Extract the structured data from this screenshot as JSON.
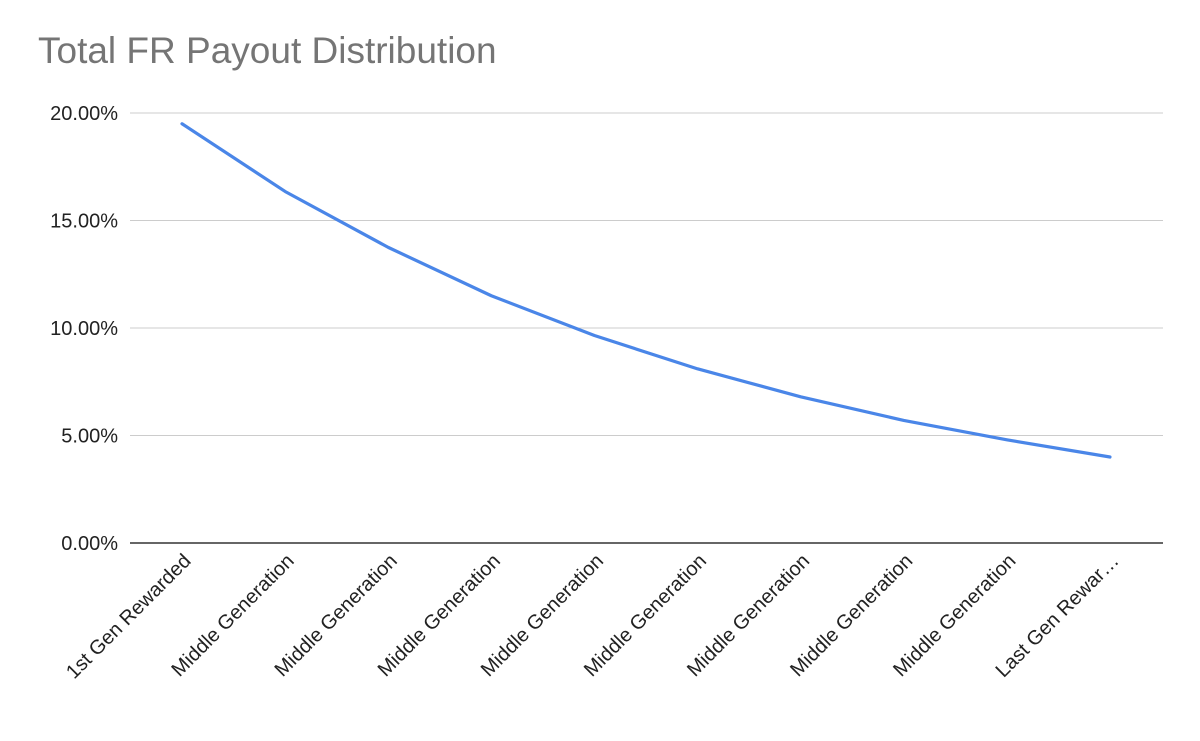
{
  "chart_data": {
    "type": "line",
    "title": "Total FR Payout Distribution",
    "xlabel": "",
    "ylabel": "",
    "categories": [
      "1st Gen Rewarded",
      "Middle Generation",
      "Middle Generation",
      "Middle Generation",
      "Middle Generation",
      "Middle Generation",
      "Middle Generation",
      "Middle Generation",
      "Middle Generation",
      "Last Gen Rewar…"
    ],
    "series": [
      {
        "color": "#4a86e8",
        "values": [
          19.5,
          16.35,
          13.75,
          11.5,
          9.65,
          8.1,
          6.8,
          5.7,
          4.8,
          4.0
        ]
      }
    ],
    "y_ticks": [
      {
        "value": 0,
        "label": "0.00%"
      },
      {
        "value": 5,
        "label": "5.00%"
      },
      {
        "value": 10,
        "label": "10.00%"
      },
      {
        "value": 15,
        "label": "15.00%"
      },
      {
        "value": 20,
        "label": "20.00%"
      }
    ],
    "ylim": [
      0,
      20
    ],
    "grid": true,
    "legend": "none"
  }
}
